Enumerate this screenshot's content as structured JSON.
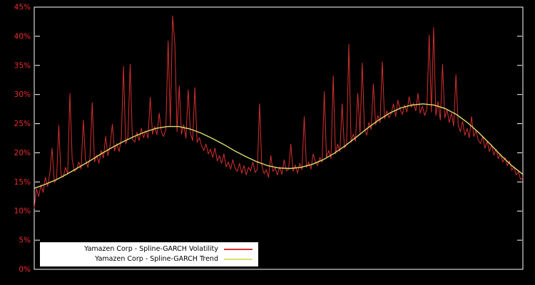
{
  "chart_data": {
    "type": "line",
    "title": "",
    "xlabel": "",
    "ylabel": "",
    "ylim": [
      0,
      45
    ],
    "yticks": [
      "0%",
      "5%",
      "10%",
      "15%",
      "20%",
      "25%",
      "30%",
      "35%",
      "40%",
      "45%"
    ],
    "ytick_values": [
      0,
      5,
      10,
      15,
      20,
      25,
      30,
      35,
      40,
      45
    ],
    "grid": false,
    "legend_position": "bottom-left",
    "colors": {
      "background": "#000000",
      "frame": "#ffffff",
      "tick_label": "#ee2c2c"
    },
    "series": [
      {
        "name": "Yamazen Corp - Spline-GARCH Volatility",
        "color": "#d62f2f",
        "values": [
          10.5,
          13.8,
          12.5,
          14.5,
          13.2,
          15.8,
          14.2,
          16.5,
          20.8,
          14.9,
          15.5,
          24.7,
          16.2,
          15.8,
          17.5,
          16.4,
          30.2,
          18.9,
          16.8,
          17.2,
          18.4,
          17.2,
          25.6,
          18.8,
          17.5,
          19.2,
          28.6,
          18.4,
          19.6,
          18.2,
          20.4,
          19.1,
          22.8,
          19.5,
          21.2,
          24.9,
          20.3,
          21.6,
          20.2,
          22.4,
          34.8,
          21.5,
          22.8,
          35.2,
          22.4,
          21.8,
          23.5,
          22.1,
          24.2,
          22.6,
          23.8,
          22.5,
          29.5,
          23.2,
          24.5,
          23.1,
          26.8,
          23.5,
          22.8,
          24.1,
          39.2,
          24.5,
          43.5,
          38.8,
          23.6,
          31.5,
          23.2,
          24.8,
          22.5,
          30.8,
          23.4,
          22.1,
          31.2,
          21.8,
          22.6,
          21.2,
          20.4,
          21.5,
          19.8,
          20.6,
          19.2,
          20.8,
          18.6,
          19.5,
          18.2,
          19.8,
          17.6,
          18.4,
          17.2,
          18.8,
          17.4,
          16.8,
          18.2,
          16.5,
          17.8,
          16.2,
          17.5,
          16.9,
          18.4,
          16.6,
          17.2,
          28.4,
          17.8,
          16.4,
          17.1,
          15.8,
          19.5,
          16.8,
          17.4,
          16.2,
          17.6,
          16.3,
          18.8,
          16.9,
          17.2,
          21.5,
          16.8,
          17.9,
          16.5,
          18.2,
          17.1,
          26.2,
          17.5,
          18.4,
          17.2,
          19.8,
          18.5,
          17.8,
          19.2,
          18.4,
          30.5,
          19.2,
          20.4,
          19.0,
          33.2,
          19.8,
          21.5,
          20.2,
          28.4,
          20.8,
          21.4,
          38.6,
          21.8,
          23.2,
          22.0,
          30.2,
          23.4,
          35.4,
          24.2,
          23.0,
          25.2,
          24.0,
          31.8,
          24.8,
          26.4,
          25.2,
          35.6,
          25.8,
          27.2,
          26.0,
          26.8,
          28.4,
          26.2,
          29.0,
          27.4,
          26.6,
          28.2,
          27.0,
          29.6,
          27.8,
          28.5,
          27.2,
          30.2,
          26.8,
          28.0,
          26.4,
          27.6,
          40.2,
          27.0,
          41.5,
          26.4,
          28.8,
          25.6,
          35.2,
          26.0,
          27.4,
          25.2,
          26.8,
          24.6,
          33.4,
          24.8,
          23.6,
          25.4,
          23.0,
          24.2,
          22.6,
          26.2,
          22.8,
          23.8,
          22.2,
          21.6,
          22.8,
          20.8,
          22.0,
          20.2,
          21.4,
          19.6,
          20.6,
          19.0,
          19.8,
          18.4,
          19.2,
          17.8,
          18.6,
          17.0,
          17.6,
          16.2,
          16.8,
          15.4,
          15.8
        ]
      },
      {
        "name": "Yamazen Corp - Spline-GARCH Trend",
        "color": "#dede70",
        "values": [
          13.9,
          14.6,
          15.4,
          16.4,
          17.5,
          18.6,
          19.8,
          20.9,
          21.9,
          22.8,
          23.6,
          24.2,
          24.5,
          24.5,
          24.1,
          23.4,
          22.5,
          21.5,
          20.4,
          19.4,
          18.5,
          17.8,
          17.4,
          17.3,
          17.5,
          18.0,
          18.8,
          19.9,
          21.2,
          22.7,
          24.2,
          25.6,
          26.8,
          27.7,
          28.2,
          28.4,
          28.2,
          27.6,
          26.6,
          25.2,
          23.5,
          21.6,
          19.6,
          17.8,
          16.3
        ]
      }
    ]
  },
  "legend": {
    "items": [
      {
        "label": "Yamazen Corp - Spline-GARCH Volatility"
      },
      {
        "label": "Yamazen Corp - Spline-GARCH Trend"
      }
    ]
  }
}
